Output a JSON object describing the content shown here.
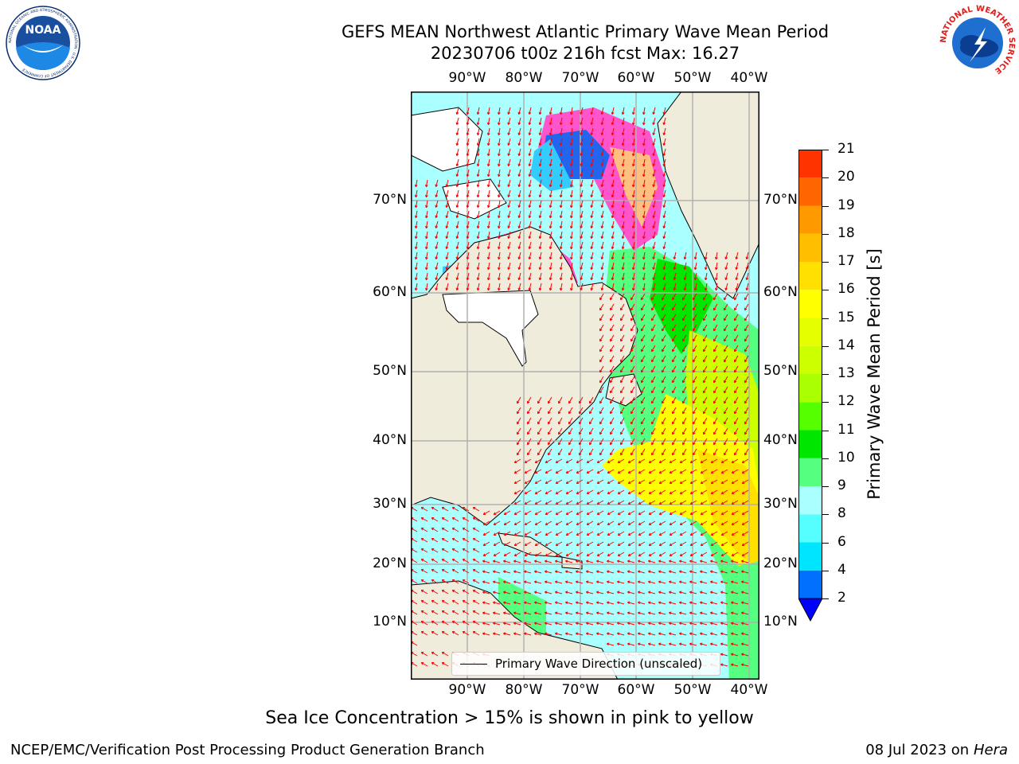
{
  "title": {
    "line1": "GEFS MEAN Northwest Atlantic Primary Wave Mean Period",
    "line2": "20230706 t00z 216h fcst   Max: 16.27"
  },
  "map": {
    "lon_ticks": [
      "90°W",
      "80°W",
      "70°W",
      "60°W",
      "50°W",
      "40°W"
    ],
    "lat_ticks": [
      "70°N",
      "60°N",
      "50°N",
      "40°N",
      "30°N",
      "20°N",
      "10°N"
    ],
    "land_color": "#efecdc",
    "ocean_base_color": "#aaffff",
    "arrow_color": "#ff0000"
  },
  "legend": {
    "label": "Primary Wave Direction (unscaled)"
  },
  "colorbar": {
    "title": "Primary Wave Mean Period [s]",
    "levels": [
      "2",
      "4",
      "6",
      "8",
      "9",
      "10",
      "11",
      "12",
      "13",
      "14",
      "15",
      "16",
      "17",
      "18",
      "19",
      "20",
      "21"
    ],
    "colors": [
      "#0070ff",
      "#00e5ff",
      "#55ffff",
      "#aaffff",
      "#55ff80",
      "#00e600",
      "#55ff00",
      "#aaff00",
      "#ccff00",
      "#e6ff00",
      "#ffff00",
      "#ffe000",
      "#ffbf00",
      "#ff9900",
      "#ff6600",
      "#ff3300",
      "#ff0000"
    ],
    "extend_color": "#0000ff"
  },
  "note": "Sea Ice Concentration > 15% is shown in pink to yellow",
  "footer": {
    "left": "NCEP/EMC/Verification Post Processing Product Generation Branch",
    "right_date": "08 Jul 2023 on ",
    "right_machine": "Hera"
  },
  "logos": {
    "noaa_text": "NOAA",
    "noaa_ring": "NATIONAL OCEANIC AND ATMOSPHERIC ADMINISTRATION · U.S. DEPARTMENT OF COMMERCE",
    "nws_ring": "NATIONAL WEATHER SERVICE"
  }
}
